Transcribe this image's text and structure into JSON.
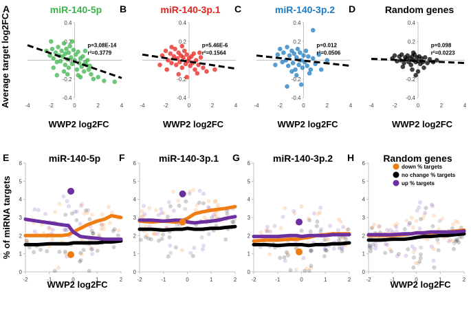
{
  "chart_data": [
    {
      "panel_letter": "A",
      "type": "scatter",
      "title": "miR-140-5p",
      "title_color": "#3cb44b",
      "point_color": "#3cb44b",
      "xlabel": "WWP2 log2FC",
      "ylabel": "Average target log2FC",
      "xlim": [
        -4,
        4
      ],
      "ylim": [
        -0.4,
        0.4
      ],
      "xticks": [
        "-4",
        "-2",
        "0",
        "2",
        "4"
      ],
      "yticks": [
        "-0.4",
        "-0.2",
        "0",
        "0.2",
        "0.4"
      ],
      "stat_p": "p=3.08E-14",
      "stat_r2": "r²=0.3779",
      "trend": {
        "x": [
          -4,
          4
        ],
        "y": [
          0.16,
          -0.19
        ]
      },
      "points": [
        [
          -2.4,
          0.1
        ],
        [
          -2.1,
          0.05
        ],
        [
          -1.9,
          0.12
        ],
        [
          -1.8,
          0.02
        ],
        [
          -1.6,
          0.08
        ],
        [
          -1.5,
          -0.02
        ],
        [
          -1.4,
          0.14
        ],
        [
          -1.3,
          0.05
        ],
        [
          -1.2,
          -0.01
        ],
        [
          -1.1,
          0.1
        ],
        [
          -1.0,
          0.04
        ],
        [
          -0.9,
          0.18
        ],
        [
          -0.8,
          0.07
        ],
        [
          -0.8,
          -0.05
        ],
        [
          -0.7,
          0.12
        ],
        [
          -0.6,
          0.01
        ],
        [
          -0.5,
          0.08
        ],
        [
          -0.5,
          -0.08
        ],
        [
          -0.4,
          0.15
        ],
        [
          -0.3,
          0.03
        ],
        [
          -0.2,
          -0.04
        ],
        [
          -0.1,
          0.11
        ],
        [
          0.0,
          0.0
        ],
        [
          0.1,
          0.06
        ],
        [
          0.2,
          -0.1
        ],
        [
          0.3,
          0.09
        ],
        [
          0.4,
          -0.03
        ],
        [
          0.5,
          0.02
        ],
        [
          0.6,
          -0.07
        ],
        [
          0.7,
          0.04
        ],
        [
          0.8,
          -0.12
        ],
        [
          0.9,
          -0.02
        ],
        [
          1.0,
          -0.05
        ],
        [
          1.2,
          -0.1
        ],
        [
          1.4,
          -0.15
        ],
        [
          1.6,
          -0.2
        ],
        [
          2.0,
          -0.18
        ],
        [
          2.5,
          -0.22
        ],
        [
          3.4,
          -0.23
        ],
        [
          -1.5,
          -0.16
        ],
        [
          -0.6,
          -0.15
        ],
        [
          0.5,
          -0.18
        ],
        [
          -2.0,
          0.2
        ],
        [
          -0.2,
          0.2
        ],
        [
          0.9,
          0.1
        ],
        [
          1.1,
          0.0
        ],
        [
          -1.8,
          -0.08
        ],
        [
          -0.9,
          -0.12
        ],
        [
          0.3,
          -0.16
        ],
        [
          1.3,
          -0.06
        ]
      ]
    },
    {
      "panel_letter": "B",
      "type": "scatter",
      "title": "miR-140-3p.1",
      "title_color": "#e8211d",
      "point_color": "#e8211d",
      "xlabel": "WWP2 log2FC",
      "ylabel": "",
      "xlim": [
        -4,
        4
      ],
      "ylim": [
        -0.4,
        0.4
      ],
      "xticks": [
        "-4",
        "-2",
        "0",
        "2",
        "4"
      ],
      "yticks": [
        "-0.4",
        "-0.2",
        "0",
        "0.2",
        "0.4"
      ],
      "stat_p": "p=5.46E-6",
      "stat_r2": "r²=0.1564",
      "trend": {
        "x": [
          -4,
          4
        ],
        "y": [
          0.06,
          -0.09
        ]
      },
      "points": [
        [
          -2.3,
          0.05
        ],
        [
          -2.0,
          0.1
        ],
        [
          -1.8,
          0.0
        ],
        [
          -1.6,
          0.07
        ],
        [
          -1.5,
          -0.03
        ],
        [
          -1.3,
          0.04
        ],
        [
          -1.2,
          0.12
        ],
        [
          -1.1,
          -0.05
        ],
        [
          -1.0,
          0.02
        ],
        [
          -0.9,
          0.08
        ],
        [
          -0.8,
          -0.02
        ],
        [
          -0.7,
          0.05
        ],
        [
          -0.6,
          -0.08
        ],
        [
          -0.5,
          0.03
        ],
        [
          -0.4,
          0.1
        ],
        [
          -0.3,
          -0.04
        ],
        [
          -0.2,
          0.06
        ],
        [
          -0.1,
          -0.01
        ],
        [
          0.0,
          0.02
        ],
        [
          0.1,
          -0.06
        ],
        [
          0.2,
          0.04
        ],
        [
          0.3,
          -0.03
        ],
        [
          0.4,
          0.07
        ],
        [
          0.5,
          -0.1
        ],
        [
          0.6,
          0.0
        ],
        [
          0.8,
          -0.05
        ],
        [
          1.0,
          0.03
        ],
        [
          1.2,
          -0.08
        ],
        [
          1.5,
          -0.12
        ],
        [
          -1.9,
          -0.1
        ],
        [
          -0.9,
          -0.15
        ],
        [
          -0.2,
          -0.18
        ],
        [
          0.7,
          -0.14
        ],
        [
          2.2,
          -0.1
        ],
        [
          -1.5,
          0.14
        ],
        [
          -0.6,
          0.15
        ],
        [
          0.9,
          0.08
        ],
        [
          -2.5,
          -0.05
        ]
      ]
    },
    {
      "panel_letter": "C",
      "type": "scatter",
      "title": "miR-140-3p.2",
      "title_color": "#1f7bc1",
      "point_color": "#1f7bc1",
      "xlabel": "WWP2 log2FC",
      "ylabel": "",
      "xlim": [
        -4,
        4
      ],
      "ylim": [
        -0.4,
        0.4
      ],
      "xticks": [
        "-4",
        "-2",
        "0",
        "2",
        "4"
      ],
      "yticks": [
        "-0.4",
        "-0.2",
        "0",
        "0.2",
        "0.4"
      ],
      "stat_p": "p=0.012",
      "stat_r2": "r²=0.0506",
      "trend": {
        "x": [
          -4,
          4
        ],
        "y": [
          0.05,
          -0.06
        ]
      },
      "points": [
        [
          -2.2,
          0.06
        ],
        [
          -2.0,
          0.12
        ],
        [
          -1.8,
          -0.02
        ],
        [
          -1.7,
          0.08
        ],
        [
          -1.5,
          0.0
        ],
        [
          -1.4,
          0.14
        ],
        [
          -1.3,
          -0.06
        ],
        [
          -1.2,
          0.05
        ],
        [
          -1.0,
          0.1
        ],
        [
          -0.9,
          -0.03
        ],
        [
          -0.8,
          0.07
        ],
        [
          -0.7,
          -0.1
        ],
        [
          -0.6,
          0.03
        ],
        [
          -0.5,
          0.12
        ],
        [
          -0.4,
          -0.05
        ],
        [
          -0.3,
          0.08
        ],
        [
          -0.2,
          0.0
        ],
        [
          -0.1,
          -0.08
        ],
        [
          0.0,
          0.05
        ],
        [
          0.1,
          -0.02
        ],
        [
          0.2,
          0.1
        ],
        [
          0.3,
          -0.06
        ],
        [
          0.4,
          0.04
        ],
        [
          0.6,
          -0.1
        ],
        [
          0.8,
          0.02
        ],
        [
          1.0,
          -0.04
        ],
        [
          1.3,
          0.06
        ],
        [
          -1.4,
          -0.28
        ],
        [
          -0.2,
          -0.26
        ],
        [
          0.8,
          0.32
        ],
        [
          -0.6,
          -0.16
        ],
        [
          0.5,
          -0.14
        ],
        [
          1.5,
          -0.1
        ],
        [
          -1.0,
          -0.12
        ],
        [
          2.0,
          0.0
        ],
        [
          -2.4,
          -0.05
        ]
      ]
    },
    {
      "panel_letter": "D",
      "type": "scatter",
      "title": "Random genes",
      "title_color": "#000000",
      "point_color": "#000000",
      "xlabel": "WWP2 log2FC",
      "ylabel": "",
      "xlim": [
        -4,
        4
      ],
      "ylim": [
        -0.4,
        0.4
      ],
      "xticks": [
        "-4",
        "-2",
        "0",
        "2",
        "4"
      ],
      "yticks": [
        "-0.4",
        "-0.2",
        "0",
        "0.2",
        "0.4"
      ],
      "stat_p": "p=0.098",
      "stat_r2": "r²=0.0223",
      "trend": {
        "x": [
          -4,
          4
        ],
        "y": [
          0.015,
          -0.03
        ]
      },
      "points": [
        [
          -2.2,
          0.02
        ],
        [
          -2.0,
          0.05
        ],
        [
          -1.8,
          -0.01
        ],
        [
          -1.6,
          0.04
        ],
        [
          -1.5,
          0.0
        ],
        [
          -1.4,
          0.06
        ],
        [
          -1.2,
          -0.03
        ],
        [
          -1.1,
          0.03
        ],
        [
          -1.0,
          0.01
        ],
        [
          -0.9,
          0.05
        ],
        [
          -0.8,
          -0.02
        ],
        [
          -0.7,
          0.02
        ],
        [
          -0.6,
          -0.05
        ],
        [
          -0.5,
          0.04
        ],
        [
          -0.4,
          0.0
        ],
        [
          -0.3,
          0.06
        ],
        [
          -0.2,
          -0.02
        ],
        [
          -0.1,
          0.03
        ],
        [
          0.0,
          -0.01
        ],
        [
          0.1,
          0.04
        ],
        [
          0.2,
          -0.04
        ],
        [
          0.3,
          0.02
        ],
        [
          0.4,
          -0.02
        ],
        [
          0.6,
          0.03
        ],
        [
          0.8,
          -0.03
        ],
        [
          1.0,
          0.01
        ],
        [
          1.3,
          -0.02
        ],
        [
          -0.5,
          -0.1
        ],
        [
          0.0,
          -0.12
        ],
        [
          -0.2,
          -0.16
        ],
        [
          0.5,
          -0.08
        ],
        [
          -1.3,
          -0.07
        ],
        [
          -0.4,
          0.08
        ],
        [
          1.6,
          0.0
        ]
      ]
    },
    {
      "panel_letter": "E",
      "type": "line",
      "title": "miR-140-5p",
      "title_color": "#000000",
      "xlabel": "WWP2 log2FC",
      "ylabel": "% of miRNA targets",
      "xlim": [
        -2,
        2
      ],
      "ylim": [
        0,
        6
      ],
      "xticks": [
        "-2",
        "-1",
        "0",
        "1",
        "2"
      ],
      "yticks": [
        "0",
        "1",
        "2",
        "3",
        "4",
        "5",
        "6"
      ],
      "x": [
        -2.0,
        -1.5,
        -1.0,
        -0.5,
        -0.2,
        0.0,
        0.3,
        0.6,
        1.0,
        1.3,
        1.6,
        2.0
      ],
      "series": [
        {
          "name": "down % targets",
          "color": "#f07c14",
          "values": [
            2.0,
            2.0,
            2.0,
            2.0,
            2.05,
            2.2,
            2.4,
            2.6,
            2.8,
            2.9,
            3.1,
            3.0
          ],
          "highlight": [
            -0.1,
            0.95
          ]
        },
        {
          "name": "no change % targets",
          "color": "#000000",
          "values": [
            1.5,
            1.5,
            1.55,
            1.55,
            1.55,
            1.6,
            1.6,
            1.6,
            1.6,
            1.65,
            1.65,
            1.7
          ],
          "highlight": null
        },
        {
          "name": "up % targets",
          "color": "#6b2fa0",
          "values": [
            2.9,
            2.8,
            2.7,
            2.6,
            2.55,
            2.2,
            1.95,
            1.9,
            1.85,
            1.8,
            1.8,
            1.8
          ],
          "highlight": [
            -0.1,
            4.45
          ]
        }
      ]
    },
    {
      "panel_letter": "F",
      "type": "line",
      "title": "miR-140-3p.1",
      "title_color": "#000000",
      "xlabel": "",
      "ylabel": "",
      "xlim": [
        -2,
        2
      ],
      "ylim": [
        0,
        6
      ],
      "xticks": [
        "-2",
        "-1",
        "0",
        "1",
        "2"
      ],
      "yticks": [
        "0",
        "1",
        "2",
        "3",
        "4",
        "5",
        "6"
      ],
      "x": [
        -2.0,
        -1.5,
        -1.0,
        -0.5,
        -0.2,
        0.0,
        0.3,
        0.6,
        1.0,
        1.3,
        1.6,
        2.0
      ],
      "series": [
        {
          "name": "down % targets",
          "color": "#f07c14",
          "values": [
            2.8,
            2.75,
            2.8,
            2.75,
            2.8,
            2.95,
            3.2,
            3.3,
            3.4,
            3.45,
            3.5,
            3.6
          ],
          "highlight": [
            -0.2,
            2.75
          ]
        },
        {
          "name": "no change % targets",
          "color": "#000000",
          "values": [
            2.35,
            2.35,
            2.3,
            2.35,
            2.35,
            2.4,
            2.35,
            2.35,
            2.4,
            2.4,
            2.45,
            2.5
          ],
          "highlight": null
        },
        {
          "name": "up % targets",
          "color": "#6b2fa0",
          "values": [
            2.85,
            2.85,
            2.8,
            2.85,
            2.85,
            2.75,
            2.7,
            2.75,
            2.8,
            2.85,
            2.95,
            3.05
          ],
          "highlight": [
            -0.2,
            4.3
          ]
        }
      ]
    },
    {
      "panel_letter": "G",
      "type": "line",
      "title": "miR-140-3p.2",
      "title_color": "#000000",
      "xlabel": "",
      "ylabel": "",
      "xlim": [
        -2,
        2
      ],
      "ylim": [
        0,
        6
      ],
      "xticks": [
        "-2",
        "-1",
        "0",
        "1",
        "2"
      ],
      "yticks": [
        "0",
        "1",
        "2",
        "3",
        "4",
        "5",
        "6"
      ],
      "x": [
        -2.0,
        -1.5,
        -1.0,
        -0.5,
        -0.2,
        0.0,
        0.3,
        0.6,
        1.0,
        1.3,
        1.6,
        2.0
      ],
      "series": [
        {
          "name": "down % targets",
          "color": "#f07c14",
          "values": [
            1.7,
            1.75,
            1.75,
            1.8,
            1.8,
            1.85,
            1.9,
            2.0,
            2.05,
            2.1,
            2.1,
            2.1
          ],
          "highlight": [
            -0.1,
            1.1
          ]
        },
        {
          "name": "no change % targets",
          "color": "#000000",
          "values": [
            1.5,
            1.5,
            1.45,
            1.5,
            1.5,
            1.5,
            1.45,
            1.5,
            1.5,
            1.55,
            1.55,
            1.6
          ],
          "highlight": null
        },
        {
          "name": "up % targets",
          "color": "#6b2fa0",
          "values": [
            1.95,
            1.95,
            1.95,
            2.0,
            2.0,
            1.95,
            2.0,
            2.0,
            2.0,
            2.05,
            2.05,
            2.05
          ],
          "highlight": [
            -0.1,
            2.75
          ]
        }
      ]
    },
    {
      "panel_letter": "H",
      "type": "line",
      "title": "Random genes",
      "title_color": "#000000",
      "xlabel": "WWP2 log2FC",
      "ylabel": "",
      "xlim": [
        -2,
        2
      ],
      "ylim": [
        0,
        6
      ],
      "xticks": [
        "-2",
        "-1",
        "0",
        "1",
        "2"
      ],
      "yticks": [
        "0",
        "1",
        "2",
        "3",
        "4",
        "5",
        "6"
      ],
      "x": [
        -2.0,
        -1.5,
        -1.0,
        -0.5,
        -0.2,
        0.0,
        0.3,
        0.6,
        1.0,
        1.3,
        1.6,
        2.0
      ],
      "series": [
        {
          "name": "down % targets",
          "color": "#f07c14",
          "values": [
            2.0,
            2.0,
            2.0,
            2.05,
            2.1,
            2.15,
            2.15,
            2.15,
            2.2,
            2.2,
            2.25,
            2.3
          ],
          "highlight": null
        },
        {
          "name": "no change % targets",
          "color": "#000000",
          "values": [
            1.75,
            1.75,
            1.8,
            1.8,
            1.85,
            1.9,
            1.95,
            1.95,
            2.0,
            2.0,
            2.05,
            2.1
          ],
          "highlight": null
        },
        {
          "name": "up % targets",
          "color": "#6b2fa0",
          "values": [
            2.05,
            2.05,
            2.05,
            2.1,
            2.1,
            2.15,
            2.15,
            2.2,
            2.2,
            2.2,
            2.2,
            2.25
          ],
          "highlight": null
        }
      ],
      "legend": [
        "down % targets",
        "no change % targets",
        "up % targets"
      ]
    }
  ]
}
